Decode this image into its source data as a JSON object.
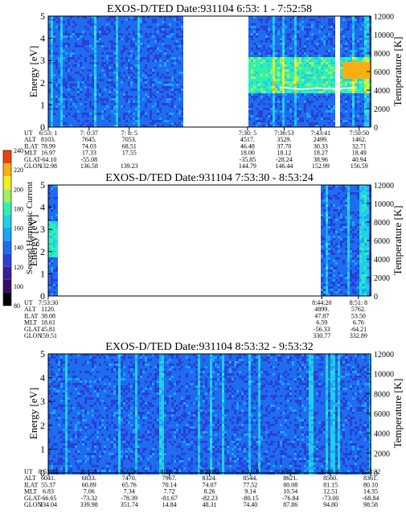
{
  "chart_data": [
    {
      "type": "heatmap",
      "title": "EXOS-D/TED   Date:931104   6:53: 1 - 7:52:58",
      "ylabel": "Energy [eV]",
      "ylabel_right": "Temperature [K]",
      "ylim": [
        0,
        5
      ],
      "ylim_right": [
        0,
        12000
      ],
      "yticks": [
        "0",
        "1",
        "2",
        "3",
        "4",
        "5"
      ],
      "yticks_right": [
        "0",
        "2000",
        "4000",
        "6000",
        "8000",
        "10000",
        "12000"
      ],
      "data_gaps": [
        [
          "7:18",
          "7:30"
        ],
        [
          "7:46",
          "7:47"
        ]
      ],
      "temperature_trace": {
        "range": [
          "7:36",
          "7:52:58"
        ],
        "points": [
          [
            "7:36",
            4300
          ],
          [
            "7:40",
            4100
          ],
          [
            "7:43",
            4200
          ],
          [
            "7:46",
            4150
          ],
          [
            "7:50",
            4250
          ]
        ]
      },
      "orbit_table": {
        "labels": [
          "UT",
          "ALT",
          "ILAT",
          "MLT",
          "GLAT",
          "GLON"
        ],
        "columns": [
          [
            "6:53: 1",
            "8103.",
            "78.99",
            "16.97",
            "-64.10",
            "132.98"
          ],
          [
            "7: 0:37",
            "7645.",
            "74.03",
            "17.33",
            "-55.08",
            "136.58"
          ],
          [
            "7: 8: 5",
            "7053.",
            "68.51",
            "17.55",
            "",
            "139.23"
          ],
          [
            "7:30: 5",
            "4517.",
            "46.48",
            "18.00",
            "-35.85",
            "144.79"
          ],
          [
            "7:36:53",
            "3529.",
            "37.70",
            "18.12",
            "-28.24",
            "146.44"
          ],
          [
            "7:43:41",
            "2499.",
            "30.33",
            "18.27",
            "38.96",
            "152.99"
          ],
          [
            "7:50:50",
            "1462.",
            "32.71",
            "18.49",
            "40.94",
            "156.59"
          ]
        ]
      }
    },
    {
      "type": "heatmap",
      "title": "EXOS-D/TED   Date:931104   7:53:30 - 8:53:24",
      "ylabel": "Energy [eV]",
      "ylabel_right": "Temperature [K]",
      "ylim": [
        0,
        5
      ],
      "ylim_right": [
        0,
        12000
      ],
      "yticks": [
        "0",
        "1",
        "2",
        "3",
        "4",
        "5"
      ],
      "yticks_right": [
        "0",
        "2000",
        "4000",
        "6000",
        "8000",
        "10000",
        "12000"
      ],
      "data_gaps": [
        [
          "7:55",
          "8:44"
        ]
      ],
      "orbit_table": {
        "labels": [
          "UT",
          "ALT",
          "ILAT",
          "MLT",
          "GLAT",
          "GLON"
        ],
        "columns": [
          [
            "7:53:30",
            "1120.",
            "38.08",
            "18.61",
            "45.81",
            "159.51"
          ],
          [
            "8:44:20",
            "4899.",
            "47.87",
            "6.59",
            "-56.33",
            "330.77"
          ],
          [
            "8:51: 8",
            "5762.",
            "53.50",
            "6.76",
            "-64.21",
            "332.89"
          ]
        ]
      }
    },
    {
      "type": "heatmap",
      "title": "EXOS-D/TED   Date:931104   8:53:32 - 9:53:32",
      "ylabel": "Energy [eV]",
      "ylabel_right": "Temperature [K]",
      "ylim": [
        0,
        5
      ],
      "ylim_right": [
        0,
        12000
      ],
      "yticks": [
        "0",
        "1",
        "2",
        "3",
        "4",
        "5"
      ],
      "yticks_right": [
        "0",
        "2000",
        "4000",
        "6000",
        "8000",
        "10000",
        "12000"
      ],
      "data_gaps": [],
      "orbit_table": {
        "labels": [
          "UT",
          "ALT",
          "ILAT",
          "MLT",
          "GLAT",
          "GLON"
        ],
        "columns": [
          [
            "8:53:32",
            "6041.",
            "55.37",
            "6.83",
            "-66.65",
            "334.04"
          ],
          [
            "9: 1: 8",
            "6833.",
            "60.89",
            "7.06",
            "-73.32",
            "339.98"
          ],
          [
            "9: 8:36",
            "7470.",
            "65.76",
            "7.34",
            "-78.39",
            "351.74"
          ],
          [
            "9:16: 4",
            "7967.",
            "70.14",
            "7.72",
            "-81.67",
            "14.84"
          ],
          [
            "9:23:32",
            "8324.",
            "74.07",
            "8.26",
            "-82.23",
            "48.31"
          ],
          [
            "9:31: 8",
            "8544.",
            "77.52",
            "9.14",
            "-80.15",
            "74.40"
          ],
          [
            "9:38:36",
            "8621.",
            "80.08",
            "10.54",
            "-76.84",
            "87.86"
          ],
          [
            "9:46: 4",
            "8560.",
            "81.15",
            "12.51",
            "-73.00",
            "94.80"
          ],
          [
            "9:53:32",
            "8361.",
            "80.10",
            "14.35",
            "-68.84",
            "98.58"
          ]
        ]
      }
    }
  ],
  "colorbar": {
    "label": "Second Harmonic Current",
    "ticks": [
      "80",
      "100",
      "120",
      "140",
      "160",
      "180",
      "200",
      "220",
      "240"
    ],
    "colors": [
      "#000000",
      "#3a0a6a",
      "#3a1e9a",
      "#2a40d8",
      "#1e6cf0",
      "#18a6f8",
      "#20d0e8",
      "#30f0b0",
      "#a0f060",
      "#f0f020",
      "#f8b010",
      "#f04010"
    ]
  },
  "colors": {
    "background_field": "#3a2ab4",
    "temperature_trace": "#ffffff"
  }
}
